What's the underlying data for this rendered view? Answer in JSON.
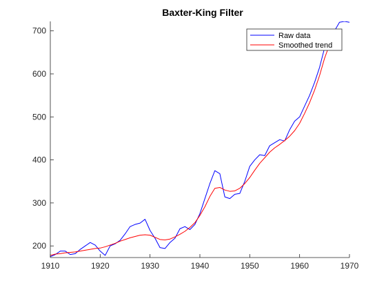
{
  "chart_data": {
    "type": "line",
    "title": "Baxter-King  Filter",
    "xlabel": "",
    "ylabel": "",
    "xlim": [
      1910,
      1970
    ],
    "ylim": [
      173,
      722
    ],
    "xticks": [
      1910,
      1920,
      1930,
      1940,
      1950,
      1960,
      1970
    ],
    "yticks": [
      200,
      300,
      400,
      500,
      600,
      700
    ],
    "grid": false,
    "legend_position": "top-right",
    "series": [
      {
        "name": "Raw data",
        "color": "#0000ff",
        "x": [
          1909,
          1910,
          1911,
          1912,
          1913,
          1914,
          1915,
          1916,
          1917,
          1918,
          1919,
          1920,
          1921,
          1922,
          1923,
          1924,
          1925,
          1926,
          1927,
          1928,
          1929,
          1930,
          1931,
          1932,
          1933,
          1934,
          1935,
          1936,
          1937,
          1938,
          1939,
          1940,
          1941,
          1942,
          1943,
          1944,
          1945,
          1946,
          1947,
          1948,
          1949,
          1950,
          1951,
          1952,
          1953,
          1954,
          1955,
          1956,
          1957,
          1958,
          1959,
          1960,
          1961,
          1962,
          1963,
          1964,
          1965,
          1966,
          1967,
          1968,
          1969,
          1970
        ],
        "y": [
          173,
          175,
          180,
          188,
          188,
          180,
          182,
          192,
          200,
          208,
          202,
          188,
          178,
          200,
          205,
          213,
          228,
          245,
          250,
          253,
          262,
          236,
          218,
          196,
          194,
          208,
          218,
          240,
          245,
          238,
          250,
          275,
          310,
          345,
          375,
          368,
          314,
          310,
          320,
          322,
          350,
          385,
          400,
          412,
          410,
          433,
          440,
          447,
          444,
          470,
          490,
          500,
          525,
          550,
          580,
          615,
          660,
          690,
          700,
          720,
          722,
          720
        ]
      },
      {
        "name": "Smoothed trend",
        "color": "#ff0000",
        "x": [
          1909,
          1910,
          1911,
          1912,
          1913,
          1914,
          1915,
          1916,
          1917,
          1918,
          1919,
          1920,
          1921,
          1922,
          1923,
          1924,
          1925,
          1926,
          1927,
          1928,
          1929,
          1930,
          1931,
          1932,
          1933,
          1934,
          1935,
          1936,
          1937,
          1938,
          1939,
          1940,
          1941,
          1942,
          1943,
          1944,
          1945,
          1946,
          1947,
          1948,
          1949,
          1950,
          1951,
          1952,
          1953,
          1954,
          1955,
          1956,
          1957,
          1958,
          1959,
          1960,
          1961,
          1962,
          1963,
          1964,
          1965,
          1966,
          1967,
          1968
        ],
        "y": [
          176,
          178,
          181,
          182,
          184,
          185,
          186,
          188,
          190,
          192,
          194,
          195,
          198,
          202,
          206,
          211,
          215,
          219,
          222,
          225,
          226,
          225,
          220,
          215,
          214,
          216,
          221,
          227,
          234,
          243,
          254,
          271,
          291,
          315,
          334,
          336,
          330,
          327,
          328,
          334,
          345,
          359,
          376,
          392,
          405,
          418,
          428,
          436,
          445,
          455,
          468,
          485,
          508,
          533,
          562,
          596,
          636,
          668,
          690,
          700
        ]
      }
    ]
  }
}
